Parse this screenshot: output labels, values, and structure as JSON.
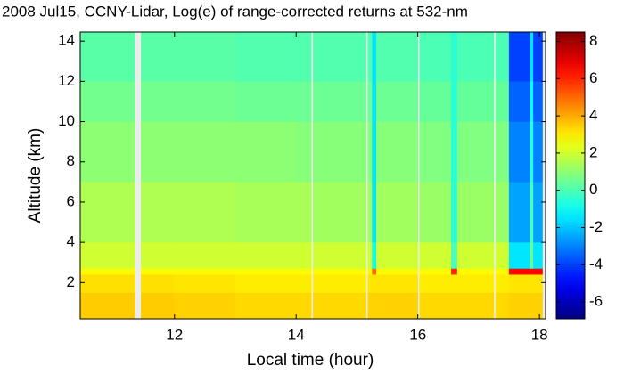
{
  "chart_data": {
    "type": "heatmap",
    "title": "2008 Jul15, CCNY-Lidar, Log(e) of range-corrected returns at 532-nm",
    "xlabel": "Local time (hour)",
    "ylabel": "Altitude (km)",
    "xlim": [
      10.45,
      18.1
    ],
    "xticks": [
      12,
      14,
      16,
      18
    ],
    "ylim": [
      0.2,
      14.45
    ],
    "yticks": [
      2,
      4,
      6,
      8,
      10,
      12,
      14
    ],
    "colormap": "jet",
    "clim": [
      -6.9,
      8.5
    ],
    "cticks": [
      -6,
      -4,
      -2,
      0,
      2,
      4,
      6,
      8
    ],
    "xbins": [
      10.45,
      11.35,
      11.45,
      12,
      13,
      14,
      14.25,
      14.28,
      15.15,
      15.18,
      15.25,
      15.32,
      16.0,
      16.03,
      16.55,
      16.65,
      17.25,
      17.28,
      17.5,
      17.85,
      17.9,
      18.05,
      18.1
    ],
    "ybins": [
      0.2,
      1.5,
      2.4,
      2.7,
      4,
      7,
      10,
      12,
      14.45
    ],
    "values": [
      [
        3.5,
        null,
        3.5,
        3.4,
        3.3,
        3.3,
        null,
        3.3,
        null,
        3.4,
        3.4,
        3.4,
        null,
        3.3,
        3.3,
        3.3,
        null,
        3.3,
        3.4,
        3.4,
        3.4,
        null
      ],
      [
        3.2,
        null,
        3.2,
        3.1,
        3,
        3,
        null,
        3,
        null,
        3.1,
        3.1,
        3.1,
        null,
        3,
        3,
        3,
        null,
        3,
        3.1,
        3.1,
        3.1,
        null
      ],
      [
        2.8,
        null,
        2.8,
        2.8,
        2.8,
        2.8,
        null,
        2.8,
        null,
        2.8,
        5,
        2.8,
        null,
        2.8,
        6,
        2.8,
        null,
        2.8,
        6.5,
        6.5,
        6.5,
        null
      ],
      [
        2,
        null,
        2,
        2,
        2,
        2,
        null,
        2,
        null,
        2,
        -1,
        2,
        null,
        2,
        0,
        2,
        null,
        2,
        -1.5,
        0.5,
        -1.5,
        null
      ],
      [
        1.5,
        null,
        1.5,
        1.5,
        1.4,
        1.4,
        null,
        1.3,
        null,
        1.3,
        -1.5,
        1.3,
        null,
        1.2,
        -0.5,
        1.2,
        null,
        1.2,
        -2.5,
        0,
        -2.5,
        null
      ],
      [
        1,
        null,
        1,
        1,
        1,
        0.9,
        null,
        0.9,
        null,
        0.9,
        -1.5,
        0.9,
        null,
        0.8,
        -0.5,
        0.8,
        null,
        0.8,
        -3,
        -0.5,
        -3,
        null
      ],
      [
        0.6,
        null,
        0.6,
        0.6,
        0.5,
        0.5,
        null,
        0.5,
        null,
        0.5,
        -1.5,
        0.5,
        null,
        0.4,
        -0.5,
        0.4,
        null,
        0.4,
        -3.5,
        -1,
        -3.5,
        null
      ],
      [
        0.2,
        null,
        0.2,
        0.2,
        0.1,
        0.1,
        null,
        0.1,
        null,
        0.1,
        -1.5,
        0.1,
        null,
        0,
        -0.5,
        0,
        null,
        0,
        -4,
        -1.5,
        -4,
        null
      ]
    ]
  }
}
